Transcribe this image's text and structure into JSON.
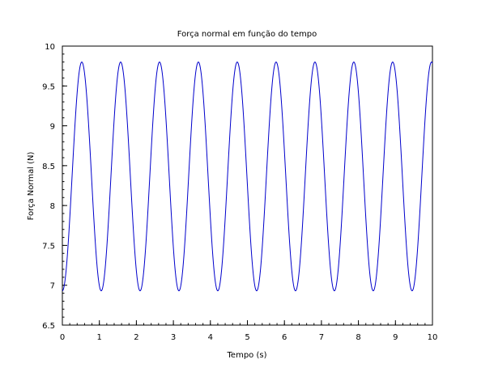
{
  "chart_data": {
    "type": "line",
    "title": "Força normal em função do tempo",
    "xlabel": "Tempo (s)",
    "ylabel": "Força Normal (N)",
    "xlim": [
      0,
      10
    ],
    "ylim": [
      6.5,
      10
    ],
    "x_ticks": [
      0,
      1,
      2,
      3,
      4,
      5,
      6,
      7,
      8,
      9,
      10
    ],
    "y_ticks": [
      6.5,
      7,
      7.5,
      8,
      8.5,
      9,
      9.5,
      10
    ],
    "x_tick_labels": [
      "0",
      "1",
      "2",
      "3",
      "4",
      "5",
      "6",
      "7",
      "8",
      "9",
      "10"
    ],
    "y_tick_labels": [
      "6.5",
      "7",
      "7.5",
      "8",
      "8.5",
      "9",
      "9.5",
      "10"
    ],
    "grid": false,
    "series": [
      {
        "color": "#0000cc",
        "model": "sinusoid",
        "start_x": 0,
        "end_x": 10,
        "start_y": 6.93,
        "min_y": 6.93,
        "max_y": 9.8,
        "period": 1.05
      }
    ]
  }
}
